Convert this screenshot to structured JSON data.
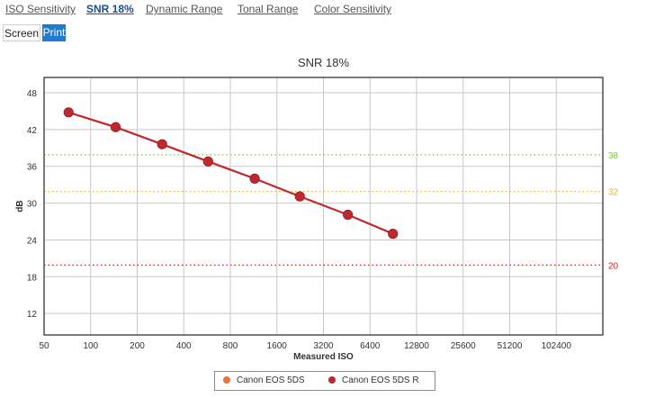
{
  "tabs": [
    {
      "label": "ISO Sensitivity",
      "active": false
    },
    {
      "label": "SNR 18%",
      "active": true
    },
    {
      "label": "Dynamic Range",
      "active": false
    },
    {
      "label": "Tonal Range",
      "active": false
    },
    {
      "label": "Color Sensitivity",
      "active": false
    }
  ],
  "view_modes": {
    "screen": "Screen",
    "print": "Print",
    "selected": "Print"
  },
  "chart_data": {
    "type": "line",
    "title": "SNR 18%",
    "xlabel": "Measured ISO",
    "ylabel": "dB",
    "x_scale": "log2",
    "x_ticks": [
      "50",
      "100",
      "200",
      "400",
      "800",
      "1600",
      "3200",
      "6400",
      "12800",
      "25600",
      "51200",
      "102400"
    ],
    "xlim": [
      50,
      204800
    ],
    "y_ticks": [
      12,
      18,
      24,
      30,
      36,
      42,
      48
    ],
    "ylim": [
      8.5,
      50.5
    ],
    "grid": true,
    "reference_lines": [
      {
        "label": "38",
        "value": 37.9,
        "color": "#7fcf3f"
      },
      {
        "label": "32",
        "value": 31.9,
        "color": "#e6b830"
      },
      {
        "label": "20",
        "value": 19.9,
        "color": "#c0282d"
      }
    ],
    "series": [
      {
        "name": "Canon EOS 5DS",
        "color": "#e8743b",
        "x": [],
        "y": []
      },
      {
        "name": "Canon EOS 5DS R",
        "color": "#c0282d",
        "x": [
          72,
          145,
          290,
          575,
          1150,
          2250,
          4600,
          9000
        ],
        "y": [
          44.8,
          42.4,
          39.6,
          36.8,
          34.0,
          31.1,
          28.1,
          25.0
        ]
      }
    ],
    "legend_position": "bottom-center"
  }
}
